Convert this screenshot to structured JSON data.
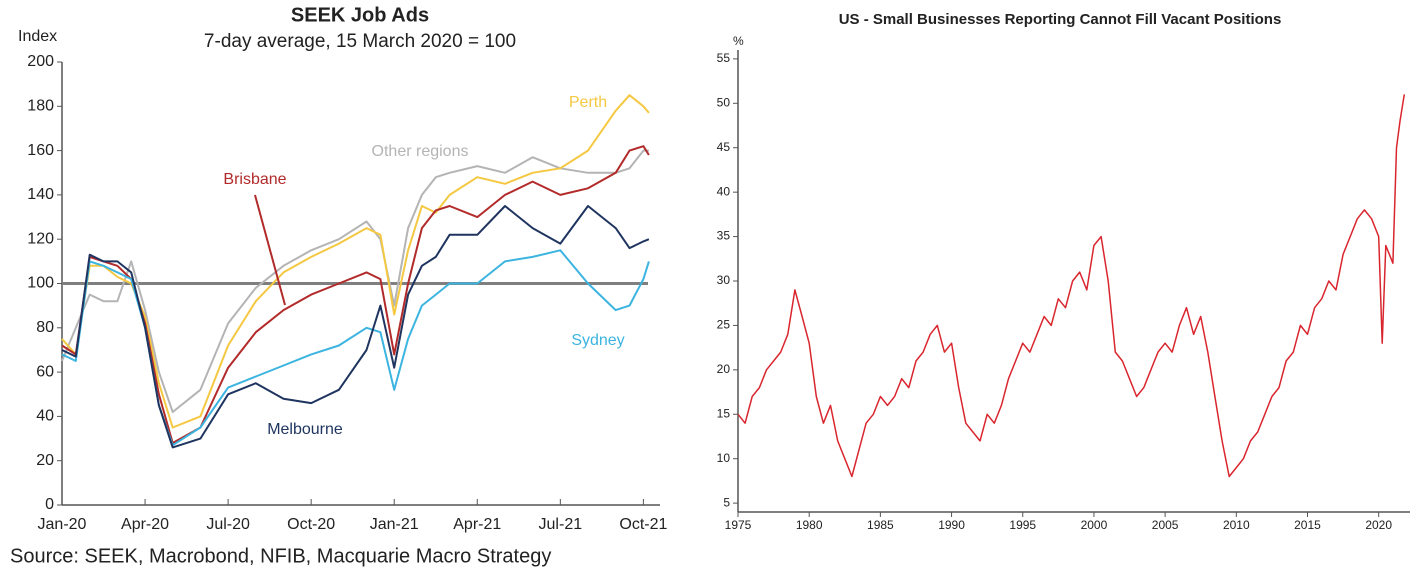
{
  "chart_data": [
    {
      "type": "line",
      "title": "SEEK Job Ads",
      "subtitle": "7-day average, 15 March 2020 = 100",
      "ylabel": "Index",
      "x": [
        0,
        0.5,
        1,
        1.5,
        2,
        2.5,
        3,
        3.5,
        4,
        5,
        6,
        7,
        8,
        9,
        10,
        11,
        11.5,
        12,
        12.5,
        13,
        13.5,
        14,
        15,
        16,
        17,
        18,
        19,
        20,
        20.5,
        21,
        21.2
      ],
      "xlim": [
        0,
        21.6
      ],
      "xticks": [
        {
          "value": 0,
          "label": "Jan-20"
        },
        {
          "value": 3,
          "label": "Apr-20"
        },
        {
          "value": 6,
          "label": "Jul-20"
        },
        {
          "value": 9,
          "label": "Oct-20"
        },
        {
          "value": 12,
          "label": "Jan-21"
        },
        {
          "value": 15,
          "label": "Apr-21"
        },
        {
          "value": 18,
          "label": "Jul-21"
        },
        {
          "value": 21,
          "label": "Oct-21"
        }
      ],
      "ylim": [
        0,
        200
      ],
      "yticks": [
        0,
        20,
        40,
        60,
        80,
        100,
        120,
        140,
        160,
        180,
        200
      ],
      "hline": 100,
      "hline_color": "#7f7f7f",
      "grid": false,
      "series": [
        {
          "name": "Other regions",
          "color": "#b4b4b4",
          "values": [
            65,
            80,
            95,
            92,
            92,
            110,
            88,
            60,
            42,
            52,
            82,
            98,
            108,
            115,
            120,
            128,
            120,
            90,
            125,
            140,
            148,
            150,
            153,
            150,
            157,
            152,
            150,
            150,
            152,
            160,
            160
          ]
        },
        {
          "name": "Perth",
          "color": "#f5c842",
          "values": [
            75,
            68,
            108,
            108,
            103,
            100,
            85,
            55,
            35,
            40,
            72,
            92,
            105,
            112,
            118,
            125,
            122,
            86,
            115,
            135,
            132,
            140,
            148,
            145,
            150,
            152,
            160,
            178,
            185,
            180,
            177
          ]
        },
        {
          "name": "Brisbane",
          "color": "#b22a2a",
          "values": [
            72,
            68,
            112,
            110,
            108,
            102,
            82,
            50,
            28,
            35,
            62,
            78,
            88,
            95,
            100,
            105,
            102,
            68,
            100,
            125,
            133,
            135,
            130,
            140,
            146,
            140,
            143,
            150,
            160,
            162,
            158
          ]
        },
        {
          "name": "Sydney",
          "color": "#3cb4e0",
          "values": [
            68,
            65,
            110,
            108,
            105,
            102,
            80,
            45,
            27,
            35,
            53,
            58,
            63,
            68,
            72,
            80,
            78,
            52,
            75,
            90,
            95,
            100,
            100,
            110,
            112,
            115,
            100,
            88,
            90,
            102,
            110
          ]
        },
        {
          "name": "Melbourne",
          "color": "#1f3560",
          "values": [
            70,
            67,
            113,
            110,
            110,
            105,
            80,
            45,
            26,
            30,
            50,
            55,
            48,
            46,
            52,
            70,
            90,
            62,
            95,
            108,
            112,
            122,
            122,
            135,
            125,
            118,
            135,
            125,
            116,
            119,
            120
          ]
        }
      ]
    },
    {
      "type": "line",
      "title": "US - Small Businesses Reporting Cannot Fill Vacant Positions",
      "ylabel": "%",
      "x": [
        1975,
        1975.5,
        1976,
        1976.5,
        1977,
        1977.5,
        1978,
        1978.5,
        1979,
        1979.5,
        1980,
        1980.5,
        1981,
        1981.5,
        1982,
        1982.5,
        1983,
        1983.5,
        1984,
        1984.5,
        1985,
        1985.5,
        1986,
        1986.5,
        1987,
        1987.5,
        1988,
        1988.5,
        1989,
        1989.5,
        1990,
        1990.5,
        1991,
        1991.5,
        1992,
        1992.5,
        1993,
        1993.5,
        1994,
        1994.5,
        1995,
        1995.5,
        1996,
        1996.5,
        1997,
        1997.5,
        1998,
        1998.5,
        1999,
        1999.5,
        2000,
        2000.5,
        2001,
        2001.5,
        2002,
        2002.5,
        2003,
        2003.5,
        2004,
        2004.5,
        2005,
        2005.5,
        2006,
        2006.5,
        2007,
        2007.5,
        2008,
        2008.5,
        2009,
        2009.5,
        2010,
        2010.5,
        2011,
        2011.5,
        2012,
        2012.5,
        2013,
        2013.5,
        2014,
        2014.5,
        2015,
        2015.5,
        2016,
        2016.5,
        2017,
        2017.5,
        2018,
        2018.5,
        2019,
        2019.5,
        2020,
        2020.25,
        2020.5,
        2021,
        2021.25,
        2021.5,
        2021.8
      ],
      "xlim": [
        1975,
        2022.2
      ],
      "xticks": [
        1975,
        1980,
        1985,
        1990,
        1995,
        2000,
        2005,
        2010,
        2015,
        2020
      ],
      "ylim": [
        4,
        56
      ],
      "yticks": [
        5,
        10,
        15,
        20,
        25,
        30,
        35,
        40,
        45,
        50,
        55
      ],
      "grid": false,
      "series": [
        {
          "name": null,
          "color": "#d9262e",
          "values": [
            15,
            14,
            17,
            18,
            20,
            21,
            22,
            24,
            29,
            26,
            23,
            17,
            14,
            16,
            12,
            10,
            8,
            11,
            14,
            15,
            17,
            16,
            17,
            19,
            18,
            21,
            22,
            24,
            25,
            22,
            23,
            18,
            14,
            13,
            12,
            15,
            14,
            16,
            19,
            21,
            23,
            22,
            24,
            26,
            25,
            28,
            27,
            30,
            31,
            29,
            34,
            35,
            30,
            22,
            21,
            19,
            17,
            18,
            20,
            22,
            23,
            22,
            25,
            27,
            24,
            26,
            22,
            17,
            12,
            8,
            9,
            10,
            12,
            13,
            15,
            17,
            18,
            21,
            22,
            25,
            24,
            27,
            28,
            30,
            29,
            33,
            35,
            37,
            38,
            37,
            35,
            23,
            34,
            32,
            45,
            48,
            51
          ]
        }
      ]
    }
  ],
  "source": "Source: SEEK, Macrobond, NFIB, Macquarie Macro Strategy"
}
